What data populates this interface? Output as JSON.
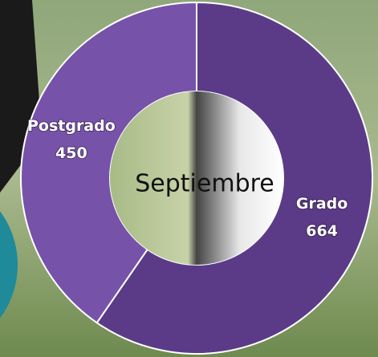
{
  "chart_data": {
    "type": "donut",
    "title": "Septiembre",
    "categories": [
      "Grado",
      "Postgrado"
    ],
    "values": [
      664,
      450
    ],
    "colors": [
      "#5b3b87",
      "#7752a9"
    ]
  }
}
